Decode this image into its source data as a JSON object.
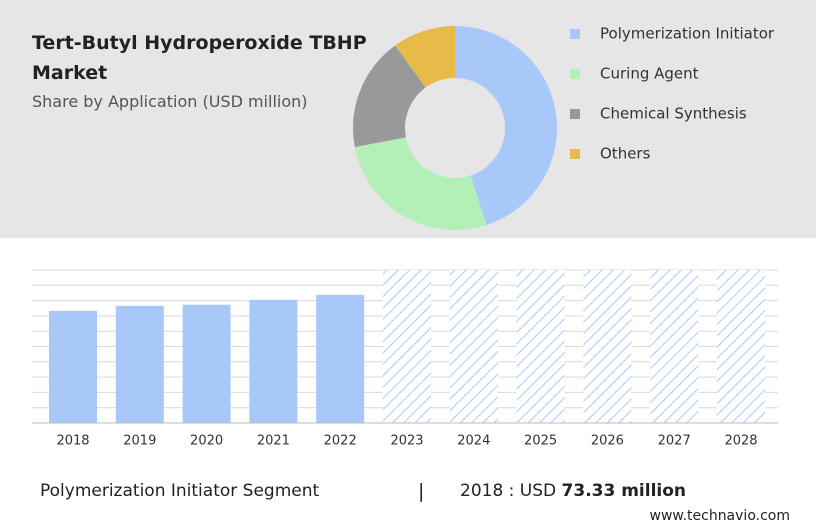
{
  "chart_data": [
    {
      "type": "pie",
      "title": "Tert-Butyl Hydroperoxide TBHP Market",
      "subtitle": "Share by Application (USD million)",
      "categories": [
        "Polymerization Initiator",
        "Curing Agent",
        "Chemical Synthesis",
        "Others"
      ],
      "values": [
        45,
        27,
        18,
        10
      ],
      "colors": [
        "#a8c8fa",
        "#b3f0b8",
        "#999999",
        "#e6bb4a"
      ]
    },
    {
      "type": "bar",
      "categories": [
        "2018",
        "2019",
        "2020",
        "2021",
        "2022",
        "2023",
        "2024",
        "2025",
        "2026",
        "2027",
        "2028"
      ],
      "values": [
        73.33,
        76.6,
        77.3,
        80.5,
        83.8,
        null,
        null,
        null,
        null,
        null,
        null
      ],
      "color": "#a8c8fa",
      "ylim": [
        0,
        100
      ],
      "grid": true
    }
  ],
  "footer": {
    "segment": "Polymerization Initiator Segment",
    "separator": "|",
    "year_label": "2018 : USD",
    "highlight": "73.33 million",
    "source": "www.technavio.com"
  }
}
